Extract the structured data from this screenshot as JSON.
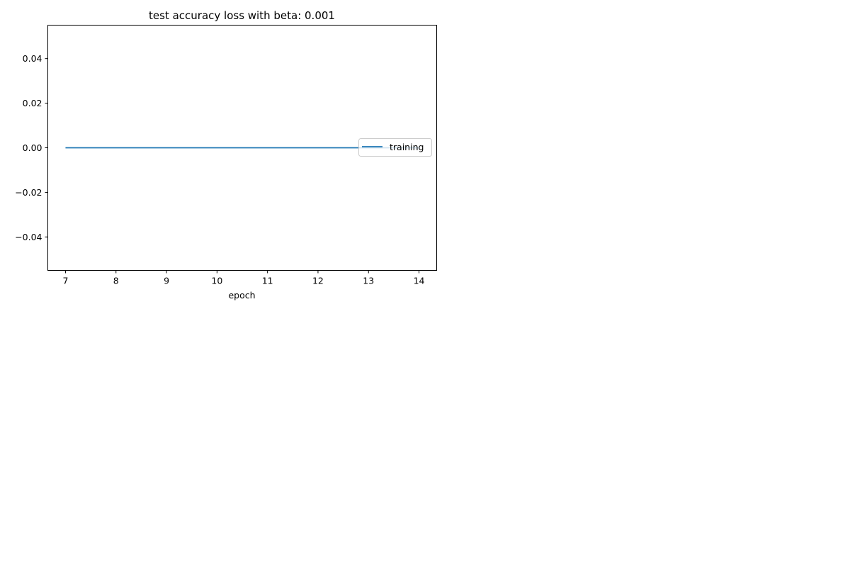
{
  "chart_data": {
    "type": "line",
    "title": "test accuracy loss with beta: 0.001",
    "xlabel": "epoch",
    "ylabel": "",
    "x": [
      7,
      8,
      9,
      10,
      11,
      12,
      13,
      14
    ],
    "series": [
      {
        "name": "training",
        "color": "#1f77b4",
        "values": [
          0,
          0,
          0,
          0,
          0,
          0,
          0,
          0
        ]
      }
    ],
    "xlim": [
      6.65,
      14.35
    ],
    "ylim": [
      -0.055,
      0.055
    ],
    "xticks": [
      7,
      8,
      9,
      10,
      11,
      12,
      13,
      14
    ],
    "xtick_labels": [
      "7",
      "8",
      "9",
      "10",
      "11",
      "12",
      "13",
      "14"
    ],
    "yticks": [
      -0.04,
      -0.02,
      0.0,
      0.02,
      0.04
    ],
    "ytick_labels": [
      "−0.04",
      "−0.02",
      "0.00",
      "0.02",
      "0.04"
    ],
    "grid": false,
    "legend_position": "center right"
  }
}
